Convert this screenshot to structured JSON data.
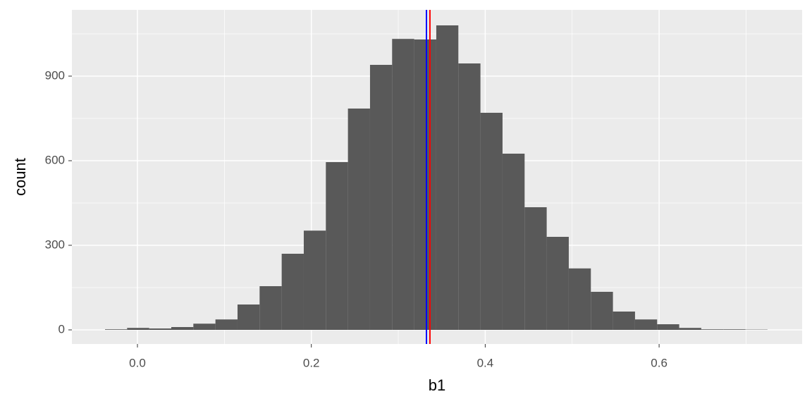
{
  "chart_data": {
    "type": "histogram",
    "x_label": "b1",
    "y_label": "count",
    "bins": [
      -0.0373,
      -0.0119,
      0.0135,
      0.0389,
      0.0643,
      0.0897,
      0.1151,
      0.1405,
      0.1659,
      0.1913,
      0.2167,
      0.2421,
      0.2675,
      0.2929,
      0.3183,
      0.3437,
      0.3691,
      0.3945,
      0.4199,
      0.4453,
      0.4707,
      0.4961,
      0.5215,
      0.5469,
      0.5723,
      0.5977,
      0.6231,
      0.6485,
      0.6739,
      0.6993,
      0.7247
    ],
    "values": [
      2,
      7,
      5,
      10,
      22,
      37,
      90,
      155,
      270,
      352,
      595,
      785,
      940,
      1032,
      1030,
      1080,
      945,
      770,
      625,
      435,
      330,
      218,
      135,
      65,
      37,
      20,
      7,
      2,
      2,
      1
    ],
    "color": "#595959",
    "vlines": [
      {
        "value": 0.3324,
        "color": "#0000ff"
      },
      {
        "value": 0.3364,
        "color": "#ff0000"
      }
    ],
    "xlim": [
      -0.0754,
      0.7645
    ],
    "ylim": [
      -50,
      1135
    ],
    "xticks": [
      {
        "value": 0,
        "label": "0.0"
      },
      0.2,
      0.4,
      0.6
    ],
    "yticks": [
      0,
      300,
      600,
      900
    ],
    "x_minor_ticks": [
      0.1,
      0.3,
      0.5,
      0.7
    ],
    "y_minor_ticks": [
      150,
      450,
      750,
      1050
    ],
    "grid": true
  }
}
